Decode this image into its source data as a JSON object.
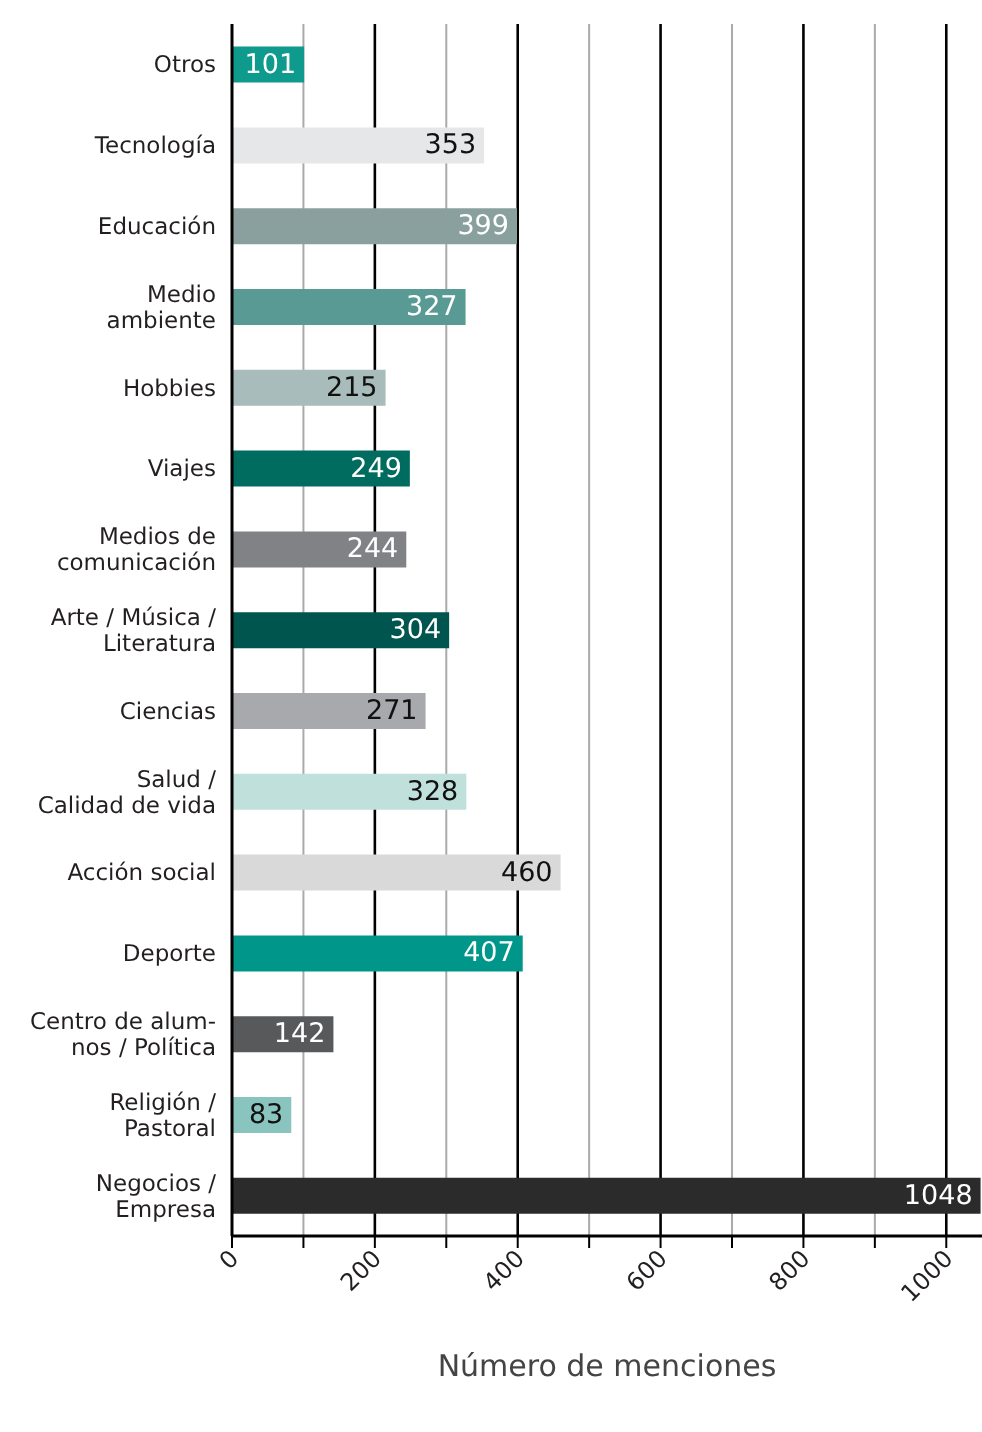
{
  "chart_data": {
    "type": "bar",
    "orientation": "horizontal",
    "xlabel": "Número de menciones",
    "categories": [
      "Otros",
      "Tecnología",
      "Educación",
      "Medio\nambiente",
      "Hobbies",
      "Viajes",
      "Medios de\ncomunicación",
      "Arte / Música /\nLiteratura",
      "Ciencias",
      "Salud /\nCalidad de vida",
      "Acción social",
      "Deporte",
      "Centro de alum-\nnos / Política",
      "Religión /\nPastoral",
      "Negocios /\nEmpresa"
    ],
    "values": [
      101,
      353,
      399,
      327,
      215,
      249,
      244,
      304,
      271,
      328,
      460,
      407,
      142,
      83,
      1048
    ],
    "colors": [
      "#0e9a8c",
      "#e6e7e8",
      "#8aa09f",
      "#5a9a94",
      "#a8bdbb",
      "#006b5f",
      "#808285",
      "#00564f",
      "#a7a9ac",
      "#c0e0dc",
      "#d9d9d9",
      "#00968a",
      "#58595b",
      "#8ac4bf",
      "#2b2b2b"
    ],
    "xlim": [
      0,
      1050
    ],
    "xticks": [
      0,
      {
        "value": 100,
        "label": null
      },
      200,
      {
        "value": 300,
        "label": null
      },
      400,
      {
        "value": 500,
        "label": null
      },
      600,
      {
        "value": 700,
        "label": null
      },
      800,
      {
        "value": 900,
        "label": null
      },
      1000
    ],
    "grid": "x",
    "data_labels": true
  }
}
